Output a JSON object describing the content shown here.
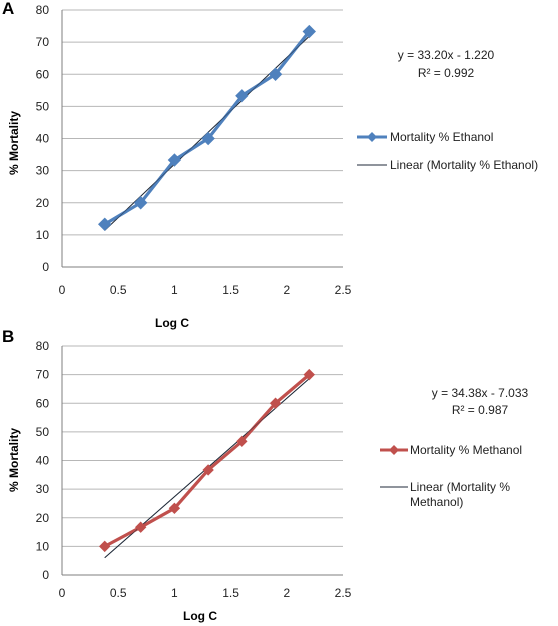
{
  "chart_data": [
    {
      "type": "line",
      "panel_label": "A",
      "xlabel": "Log C",
      "ylabel": "% Mortality",
      "xlim": [
        0,
        2.5
      ],
      "ylim": [
        0,
        80
      ],
      "xticks": [
        "0",
        "0.5",
        "1",
        "1.5",
        "2",
        "2.5"
      ],
      "yticks": [
        "0",
        "10",
        "20",
        "30",
        "40",
        "50",
        "60",
        "70",
        "80"
      ],
      "grid": "horizontal",
      "legend_placement": "right",
      "series": [
        {
          "name": "Mortality % Ethanol",
          "color": "#4f81bd",
          "marker": "diamond",
          "x": [
            0.38,
            0.7,
            1.0,
            1.3,
            1.6,
            1.9,
            2.2
          ],
          "y": [
            13.3,
            20.0,
            33.3,
            40.0,
            53.3,
            60.0,
            73.3
          ]
        }
      ],
      "trendline": {
        "name": "Linear (Mortality % Ethanol)",
        "color": "#1f2a38",
        "slope": 33.2,
        "intercept": -1.22,
        "equation": "y = 33.20x - 1.220",
        "r2": "R² = 0.992"
      }
    },
    {
      "type": "line",
      "panel_label": "B",
      "xlabel": "Log C",
      "ylabel": "% Mortality",
      "xlim": [
        0,
        2.5
      ],
      "ylim": [
        0,
        80
      ],
      "xticks": [
        "0",
        "0.5",
        "1",
        "1.5",
        "2",
        "2.5"
      ],
      "yticks": [
        "0",
        "10",
        "20",
        "30",
        "40",
        "50",
        "60",
        "70",
        "80"
      ],
      "grid": "horizontal",
      "legend_placement": "right",
      "series": [
        {
          "name": "Mortality % Methanol",
          "color": "#c0504d",
          "marker": "diamond",
          "x": [
            0.38,
            0.7,
            1.0,
            1.3,
            1.6,
            1.9,
            2.2
          ],
          "y": [
            10.0,
            16.7,
            23.3,
            36.7,
            46.7,
            60.0,
            70.0
          ]
        }
      ],
      "trendline": {
        "name_lines": [
          "Linear (Mortality %",
          "Methanol)"
        ],
        "color": "#1f2a38",
        "slope": 34.38,
        "intercept": -7.033,
        "equation": "y = 34.38x - 7.033",
        "r2": "R² = 0.987"
      }
    }
  ]
}
